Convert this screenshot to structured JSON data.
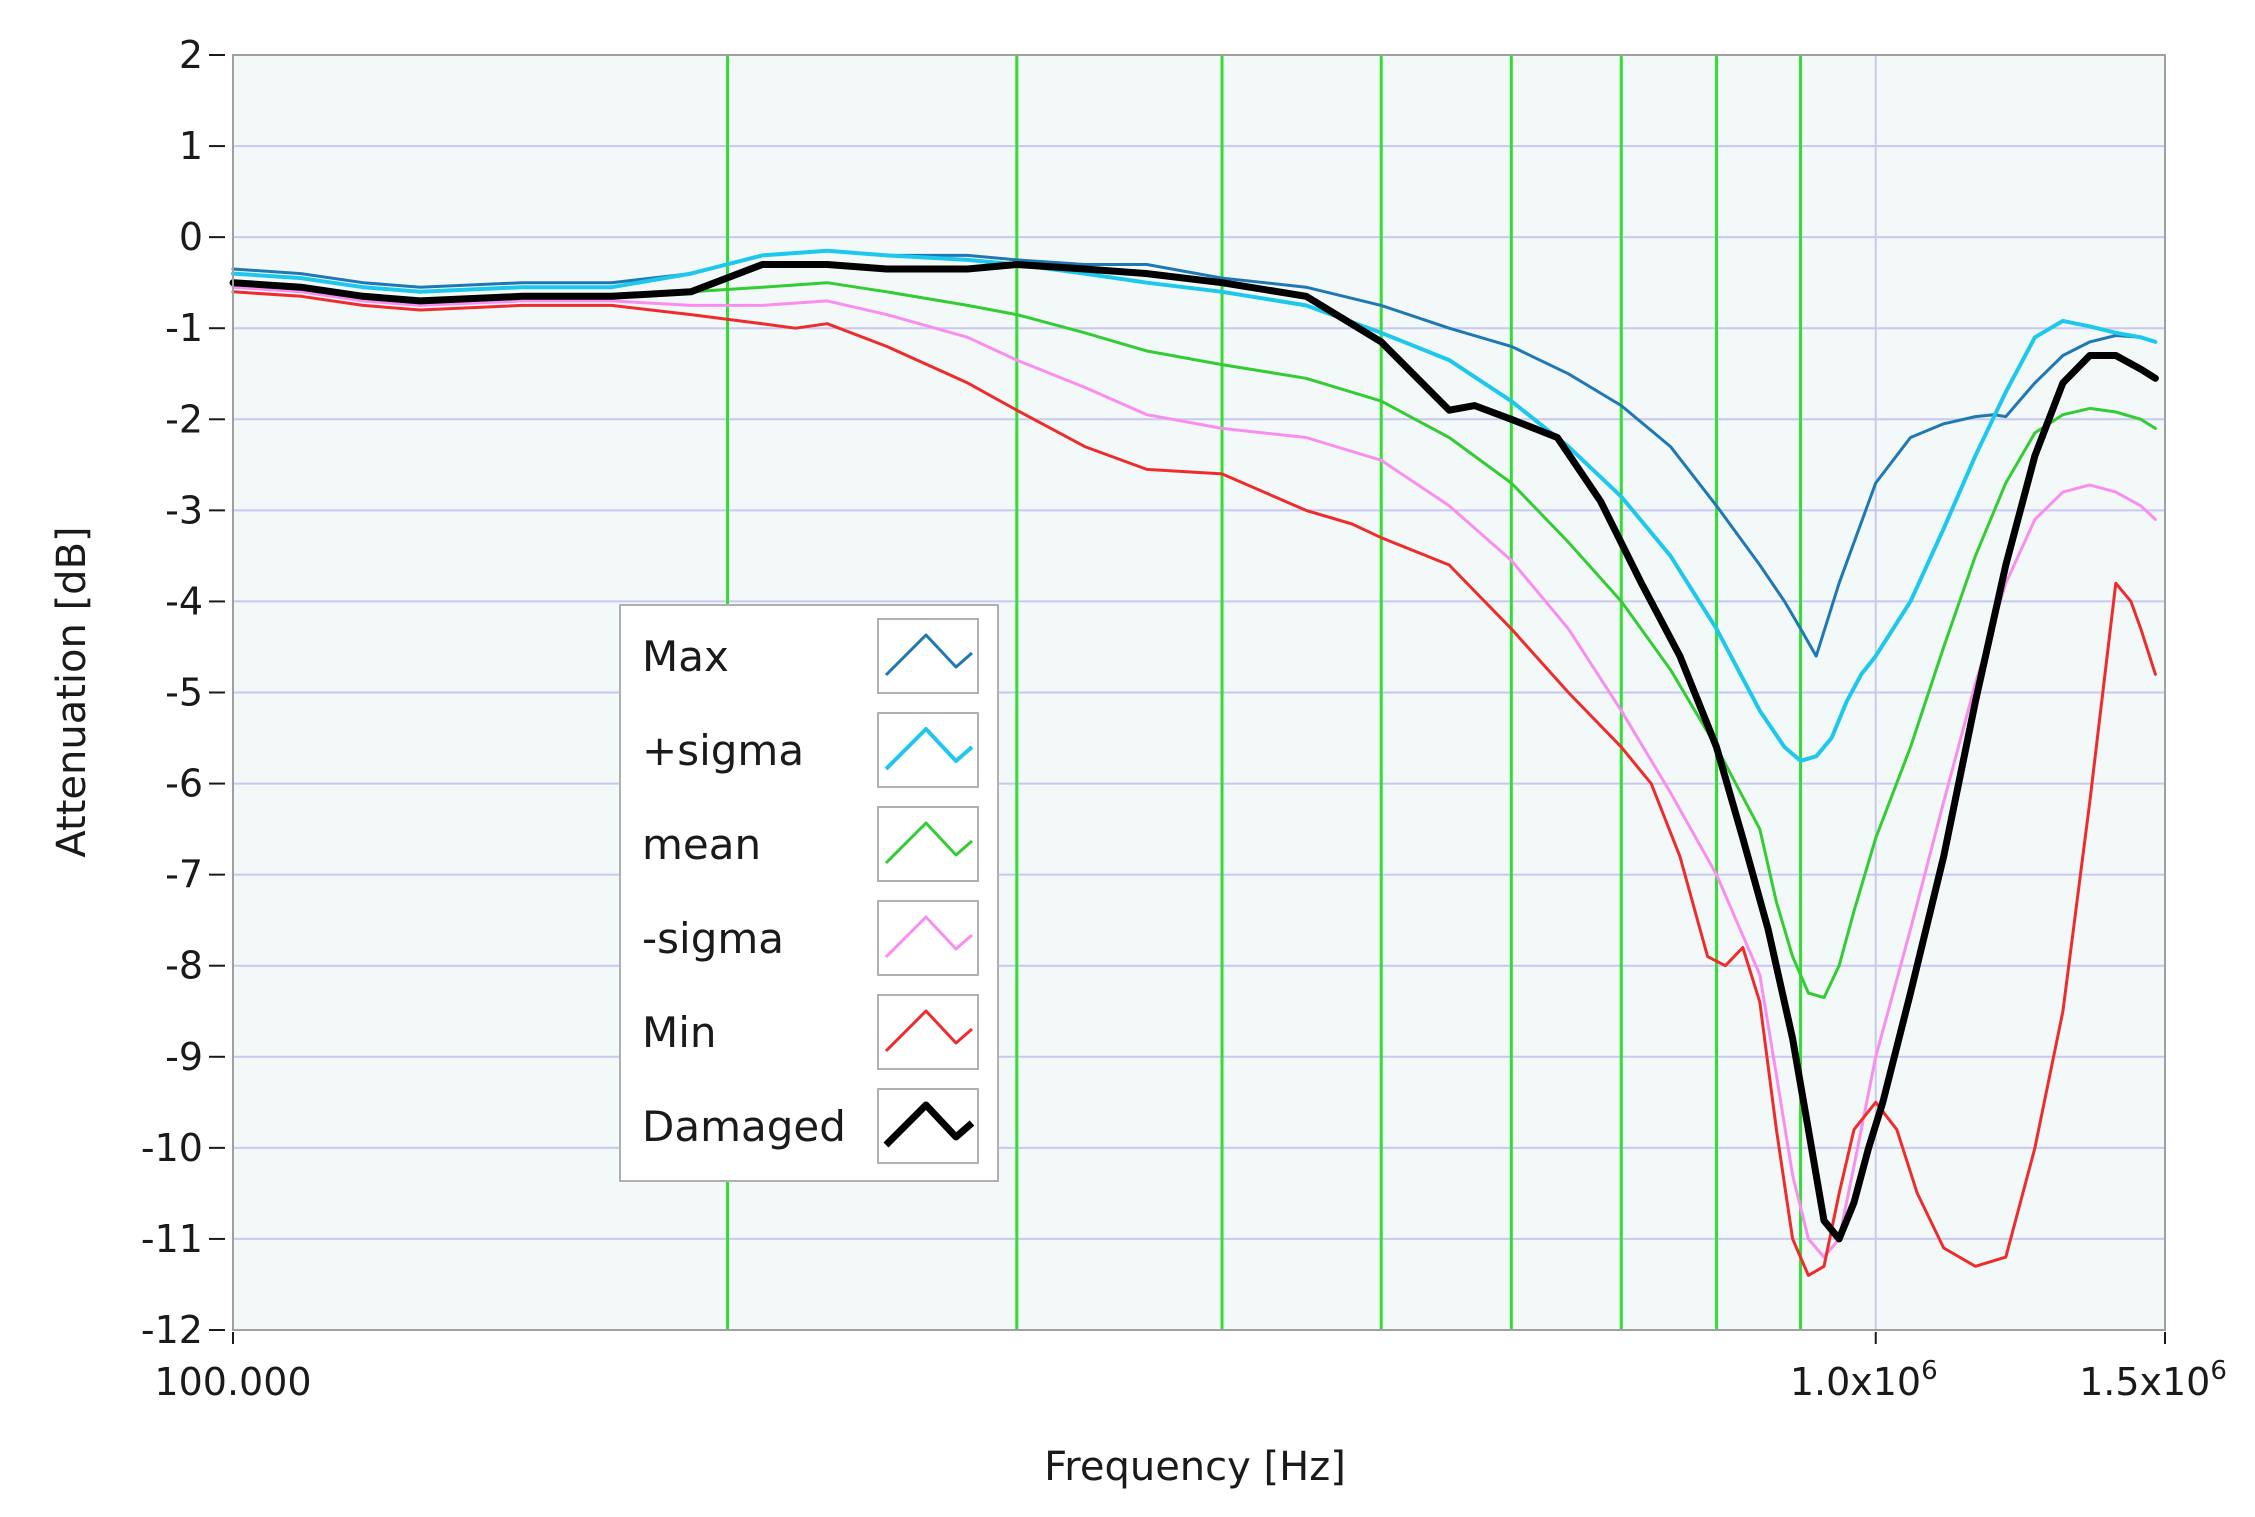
{
  "chart_data": {
    "type": "line",
    "xlabel": "Frequency [Hz]",
    "ylabel": "Attenuation [dB]",
    "x_scale": "log",
    "xlim": [
      100000,
      1500000
    ],
    "ylim": [
      -12,
      2
    ],
    "x_tick_labels": [
      {
        "value": 100000,
        "label": "100.000"
      },
      {
        "value": 1000000,
        "label": "1.0x10",
        "exp": "6"
      },
      {
        "value": 1500000,
        "label": "1.5x10",
        "exp": "6"
      }
    ],
    "y_ticks": [
      2,
      1,
      0,
      -1,
      -2,
      -3,
      -4,
      -5,
      -6,
      -7,
      -8,
      -9,
      -10,
      -11,
      -12
    ],
    "y_tick_labels": [
      "2",
      "1",
      "0",
      "-1",
      "-2",
      "-3",
      "-4",
      "-5",
      "-6",
      "-7",
      "-8",
      "-9",
      "-10",
      "-11",
      "-12"
    ],
    "vertical_markers": [
      200000,
      300000,
      400000,
      500000,
      600000,
      700000,
      800000,
      900000
    ],
    "grid": true,
    "legend_position": "left-center",
    "colors": {
      "plot_background": "#f3f9f9",
      "grid": "#c8c8f0",
      "markers": "#33dd33",
      "frame": "#a0a0a0"
    },
    "series": [
      {
        "name": "Max",
        "color": "#1f78b4",
        "width": 3,
        "x": [
          100000,
          110000,
          120000,
          130000,
          150000,
          170000,
          190000,
          210000,
          230000,
          250000,
          280000,
          300000,
          330000,
          360000,
          400000,
          450000,
          500000,
          550000,
          600000,
          650000,
          700000,
          750000,
          800000,
          850000,
          880000,
          900000,
          920000,
          950000,
          1000000,
          1050000,
          1100000,
          1150000,
          1180000,
          1200000,
          1250000,
          1300000,
          1350000,
          1400000,
          1450000,
          1480000
        ],
        "y": [
          -0.35,
          -0.4,
          -0.5,
          -0.55,
          -0.5,
          -0.5,
          -0.4,
          -0.2,
          -0.15,
          -0.2,
          -0.2,
          -0.25,
          -0.3,
          -0.3,
          -0.45,
          -0.55,
          -0.75,
          -1.0,
          -1.2,
          -1.5,
          -1.85,
          -2.3,
          -2.95,
          -3.6,
          -4.0,
          -4.3,
          -4.6,
          -3.8,
          -2.7,
          -2.2,
          -2.05,
          -1.97,
          -1.95,
          -1.97,
          -1.6,
          -1.3,
          -1.15,
          -1.08,
          -1.1,
          -1.15
        ]
      },
      {
        "name": "+sigma",
        "color": "#1ec8ec",
        "width": 4,
        "x": [
          100000,
          110000,
          120000,
          130000,
          150000,
          170000,
          190000,
          210000,
          230000,
          250000,
          280000,
          300000,
          330000,
          360000,
          400000,
          450000,
          500000,
          550000,
          600000,
          650000,
          700000,
          750000,
          800000,
          850000,
          880000,
          900000,
          920000,
          940000,
          960000,
          980000,
          1000000,
          1050000,
          1100000,
          1150000,
          1200000,
          1250000,
          1300000,
          1350000,
          1400000,
          1450000,
          1480000
        ],
        "y": [
          -0.4,
          -0.45,
          -0.55,
          -0.6,
          -0.55,
          -0.55,
          -0.4,
          -0.2,
          -0.15,
          -0.2,
          -0.25,
          -0.3,
          -0.4,
          -0.5,
          -0.6,
          -0.75,
          -1.05,
          -1.35,
          -1.8,
          -2.3,
          -2.85,
          -3.5,
          -4.3,
          -5.2,
          -5.6,
          -5.75,
          -5.7,
          -5.5,
          -5.1,
          -4.8,
          -4.6,
          -4.0,
          -3.2,
          -2.4,
          -1.7,
          -1.1,
          -0.92,
          -0.98,
          -1.05,
          -1.1,
          -1.15
        ]
      },
      {
        "name": "mean",
        "color": "#33cc33",
        "width": 3,
        "x": [
          100000,
          110000,
          120000,
          130000,
          150000,
          170000,
          190000,
          210000,
          230000,
          250000,
          280000,
          300000,
          330000,
          360000,
          400000,
          450000,
          500000,
          550000,
          600000,
          650000,
          700000,
          750000,
          800000,
          850000,
          870000,
          890000,
          910000,
          930000,
          950000,
          970000,
          1000000,
          1050000,
          1100000,
          1150000,
          1200000,
          1250000,
          1300000,
          1350000,
          1400000,
          1450000,
          1480000
        ],
        "y": [
          -0.5,
          -0.55,
          -0.65,
          -0.7,
          -0.65,
          -0.65,
          -0.6,
          -0.55,
          -0.5,
          -0.6,
          -0.75,
          -0.85,
          -1.05,
          -1.25,
          -1.4,
          -1.55,
          -1.8,
          -2.2,
          -2.7,
          -3.35,
          -4.0,
          -4.75,
          -5.6,
          -6.5,
          -7.3,
          -7.9,
          -8.3,
          -8.35,
          -8.0,
          -7.4,
          -6.6,
          -5.6,
          -4.5,
          -3.5,
          -2.7,
          -2.15,
          -1.95,
          -1.88,
          -1.92,
          -2.0,
          -2.1
        ]
      },
      {
        "name": "-sigma",
        "color": "#f98ef0",
        "width": 3,
        "x": [
          100000,
          110000,
          120000,
          130000,
          150000,
          170000,
          190000,
          210000,
          230000,
          250000,
          280000,
          300000,
          330000,
          360000,
          400000,
          450000,
          500000,
          550000,
          600000,
          650000,
          700000,
          750000,
          800000,
          850000,
          870000,
          890000,
          910000,
          930000,
          950000,
          970000,
          1000000,
          1050000,
          1100000,
          1150000,
          1200000,
          1250000,
          1300000,
          1350000,
          1400000,
          1450000,
          1480000
        ],
        "y": [
          -0.55,
          -0.6,
          -0.7,
          -0.75,
          -0.7,
          -0.7,
          -0.75,
          -0.75,
          -0.7,
          -0.85,
          -1.1,
          -1.35,
          -1.65,
          -1.95,
          -2.1,
          -2.2,
          -2.45,
          -2.95,
          -3.55,
          -4.3,
          -5.2,
          -6.1,
          -7.0,
          -8.1,
          -9.2,
          -10.3,
          -11.0,
          -11.2,
          -11.0,
          -10.2,
          -9.0,
          -7.6,
          -6.2,
          -4.9,
          -3.8,
          -3.1,
          -2.8,
          -2.72,
          -2.8,
          -2.95,
          -3.1
        ]
      },
      {
        "name": "Min",
        "color": "#ee2c2c",
        "width": 3,
        "x": [
          100000,
          110000,
          120000,
          130000,
          150000,
          170000,
          190000,
          210000,
          220000,
          230000,
          250000,
          280000,
          300000,
          330000,
          360000,
          400000,
          450000,
          480000,
          500000,
          550000,
          600000,
          650000,
          700000,
          730000,
          760000,
          790000,
          810000,
          830000,
          850000,
          870000,
          890000,
          910000,
          930000,
          950000,
          970000,
          1000000,
          1030000,
          1060000,
          1100000,
          1150000,
          1200000,
          1250000,
          1300000,
          1350000,
          1400000,
          1430000,
          1450000,
          1480000
        ],
        "y": [
          -0.6,
          -0.65,
          -0.75,
          -0.8,
          -0.75,
          -0.75,
          -0.85,
          -0.95,
          -1.0,
          -0.95,
          -1.2,
          -1.6,
          -1.9,
          -2.3,
          -2.55,
          -2.6,
          -3.0,
          -3.15,
          -3.3,
          -3.6,
          -4.3,
          -5.0,
          -5.6,
          -6.0,
          -6.8,
          -7.9,
          -8.0,
          -7.8,
          -8.4,
          -9.8,
          -11.0,
          -11.4,
          -11.3,
          -10.5,
          -9.8,
          -9.5,
          -9.8,
          -10.5,
          -11.1,
          -11.3,
          -11.2,
          -10.0,
          -8.5,
          -6.2,
          -3.8,
          -4.0,
          -4.3,
          -4.8
        ]
      },
      {
        "name": "Damaged",
        "color": "#000000",
        "width": 7,
        "x": [
          100000,
          110000,
          120000,
          130000,
          150000,
          170000,
          190000,
          210000,
          230000,
          250000,
          280000,
          300000,
          330000,
          360000,
          400000,
          450000,
          500000,
          550000,
          570000,
          600000,
          640000,
          680000,
          720000,
          760000,
          800000,
          830000,
          860000,
          890000,
          910000,
          930000,
          950000,
          970000,
          990000,
          1010000,
          1050000,
          1100000,
          1150000,
          1200000,
          1250000,
          1300000,
          1350000,
          1400000,
          1450000,
          1480000
        ],
        "y": [
          -0.5,
          -0.55,
          -0.65,
          -0.7,
          -0.65,
          -0.65,
          -0.6,
          -0.3,
          -0.3,
          -0.35,
          -0.35,
          -0.3,
          -0.35,
          -0.4,
          -0.5,
          -0.65,
          -1.15,
          -1.9,
          -1.85,
          -2.0,
          -2.2,
          -2.9,
          -3.8,
          -4.6,
          -5.6,
          -6.6,
          -7.6,
          -8.8,
          -9.8,
          -10.8,
          -11.0,
          -10.6,
          -10.0,
          -9.5,
          -8.3,
          -6.8,
          -5.1,
          -3.6,
          -2.4,
          -1.6,
          -1.3,
          -1.3,
          -1.45,
          -1.55
        ]
      }
    ]
  }
}
